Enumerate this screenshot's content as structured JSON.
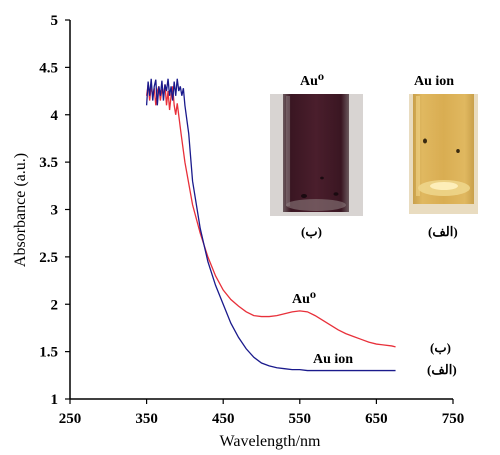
{
  "chart_data": {
    "type": "line",
    "xlabel": "Wavelength/nm",
    "ylabel": "Absorbance (a.u.)",
    "xlim": [
      250,
      750
    ],
    "ylim": [
      1,
      5
    ],
    "xticks": [
      "250",
      "350",
      "450",
      "550",
      "650",
      "750"
    ],
    "yticks": [
      "1",
      "1.5",
      "2",
      "2.5",
      "3",
      "3.5",
      "4",
      "4.5",
      "5"
    ],
    "grid": false,
    "series": [
      {
        "color": "#e8303a",
        "x": [
          350,
          352,
          354,
          356,
          358,
          360,
          362,
          364,
          366,
          368,
          370,
          372,
          374,
          376,
          378,
          380,
          382,
          384,
          386,
          388,
          390,
          395,
          400,
          410,
          420,
          430,
          440,
          450,
          460,
          470,
          480,
          490,
          500,
          510,
          520,
          530,
          540,
          550,
          560,
          570,
          580,
          590,
          600,
          610,
          620,
          630,
          640,
          650,
          660,
          670,
          675
        ],
        "y": [
          4.2,
          4.32,
          4.15,
          4.3,
          4.2,
          4.28,
          4.1,
          4.25,
          4.3,
          4.15,
          4.27,
          4.2,
          4.32,
          4.1,
          4.25,
          4.05,
          4.2,
          4.3,
          4.1,
          4.0,
          4.12,
          3.8,
          3.5,
          3.05,
          2.75,
          2.5,
          2.3,
          2.15,
          2.05,
          1.98,
          1.92,
          1.88,
          1.87,
          1.87,
          1.88,
          1.9,
          1.92,
          1.93,
          1.92,
          1.88,
          1.83,
          1.78,
          1.73,
          1.69,
          1.66,
          1.63,
          1.6,
          1.58,
          1.57,
          1.56,
          1.55
        ],
        "annotation": "Au⁰",
        "marker_label": "(ب)"
      },
      {
        "color": "#1a1a8c",
        "x": [
          350,
          352,
          354,
          356,
          358,
          360,
          362,
          364,
          366,
          368,
          370,
          372,
          374,
          376,
          378,
          380,
          382,
          384,
          386,
          388,
          390,
          392,
          394,
          396,
          398,
          400,
          405,
          410,
          420,
          430,
          440,
          450,
          460,
          470,
          480,
          490,
          500,
          510,
          520,
          530,
          540,
          550,
          560,
          570,
          580,
          600,
          620,
          640,
          660,
          675
        ],
        "y": [
          4.1,
          4.35,
          4.2,
          4.38,
          4.15,
          4.3,
          4.37,
          4.1,
          4.3,
          4.2,
          4.36,
          4.15,
          4.32,
          4.25,
          4.38,
          4.2,
          4.3,
          4.15,
          4.35,
          4.2,
          4.38,
          4.25,
          4.3,
          4.2,
          4.28,
          4.1,
          3.8,
          3.3,
          2.8,
          2.45,
          2.2,
          2.0,
          1.8,
          1.65,
          1.53,
          1.44,
          1.38,
          1.35,
          1.33,
          1.32,
          1.31,
          1.31,
          1.3,
          1.3,
          1.3,
          1.3,
          1.3,
          1.3,
          1.3,
          1.3
        ],
        "annotation": "Au ion",
        "marker_label": "(الف)"
      }
    ]
  },
  "insets": [
    {
      "title": "Au⁰",
      "caption": "(ب)",
      "liquid_color": "#3e1a26"
    },
    {
      "title": "Au ion",
      "caption": "(الف)",
      "liquid_color": "#d6aa48"
    }
  ]
}
